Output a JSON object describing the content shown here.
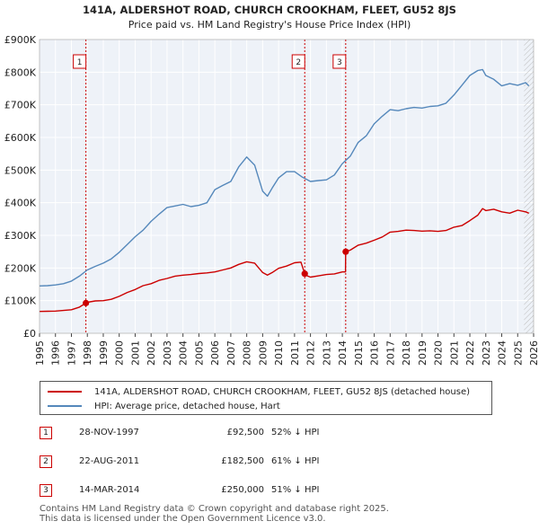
{
  "chart_data": {
    "type": "line",
    "title": "141A, ALDERSHOT ROAD, CHURCH CROOKHAM, FLEET, GU52 8JS",
    "subtitle": "Price paid vs. HM Land Registry's House Price Index (HPI)",
    "xlabel": "",
    "ylabel": "",
    "xlim": [
      1995,
      2026
    ],
    "ylim": [
      0,
      900000
    ],
    "y_ticks": [
      {
        "value": 0,
        "label": "£0"
      },
      {
        "value": 100000,
        "label": "£100K"
      },
      {
        "value": 200000,
        "label": "£200K"
      },
      {
        "value": 300000,
        "label": "£300K"
      },
      {
        "value": 400000,
        "label": "£400K"
      },
      {
        "value": 500000,
        "label": "£500K"
      },
      {
        "value": 600000,
        "label": "£600K"
      },
      {
        "value": 700000,
        "label": "£700K"
      },
      {
        "value": 800000,
        "label": "£800K"
      },
      {
        "value": 900000,
        "label": "£900K"
      }
    ],
    "x_ticks": [
      "1995",
      "1996",
      "1997",
      "1998",
      "1999",
      "2000",
      "2001",
      "2002",
      "2003",
      "2004",
      "2005",
      "2006",
      "2007",
      "2008",
      "2009",
      "2010",
      "2011",
      "2012",
      "2013",
      "2014",
      "2015",
      "2016",
      "2017",
      "2018",
      "2019",
      "2020",
      "2021",
      "2022",
      "2023",
      "2024",
      "2025",
      "2026"
    ],
    "grid": true,
    "series": [
      {
        "name": "141A, ALDERSHOT ROAD, CHURCH CROOKHAM, FLEET, GU52 8JS (detached house)",
        "color": "#cc0000",
        "x": [
          1995.0,
          1995.5,
          1996.0,
          1996.5,
          1997.0,
          1997.5,
          1997.91,
          1998.0,
          1998.5,
          1999.0,
          1999.5,
          2000.0,
          2000.5,
          2001.0,
          2001.5,
          2002.0,
          2002.5,
          2003.0,
          2003.5,
          2004.0,
          2004.5,
          2005.0,
          2005.5,
          2006.0,
          2006.5,
          2007.0,
          2007.5,
          2008.0,
          2008.5,
          2009.0,
          2009.3,
          2009.6,
          2010.0,
          2010.5,
          2011.0,
          2011.4,
          2011.64,
          2011.8,
          2012.0,
          2012.5,
          2013.0,
          2013.5,
          2014.0,
          2014.2,
          2014.21,
          2014.5,
          2015.0,
          2015.5,
          2016.0,
          2016.5,
          2017.0,
          2017.5,
          2018.0,
          2018.5,
          2019.0,
          2019.5,
          2020.0,
          2020.5,
          2021.0,
          2021.5,
          2022.0,
          2022.5,
          2022.8,
          2023.0,
          2023.5,
          2024.0,
          2024.5,
          2025.0,
          2025.5,
          2025.7
        ],
        "values": [
          67000,
          67500,
          68000,
          70000,
          72000,
          80000,
          92500,
          95000,
          99000,
          100000,
          104000,
          113000,
          125000,
          134000,
          146000,
          152000,
          162000,
          168000,
          175000,
          178000,
          180000,
          183000,
          185000,
          188000,
          194000,
          200000,
          211000,
          219000,
          215000,
          186000,
          178000,
          186000,
          199000,
          206000,
          216000,
          218000,
          182500,
          176000,
          172000,
          176000,
          180000,
          182000,
          188000,
          188000,
          250000,
          255000,
          270000,
          276000,
          285000,
          295000,
          310000,
          312000,
          316000,
          315000,
          313000,
          314000,
          312000,
          315000,
          325000,
          330000,
          345000,
          362000,
          382000,
          376000,
          380000,
          372000,
          368000,
          377000,
          372000,
          368000
        ]
      },
      {
        "name": "HPI: Average price, detached house, Hart",
        "color": "#5588bb",
        "x": [
          1995.0,
          1995.5,
          1996.0,
          1996.5,
          1997.0,
          1997.5,
          1998.0,
          1998.5,
          1999.0,
          1999.5,
          2000.0,
          2000.5,
          2001.0,
          2001.5,
          2002.0,
          2002.5,
          2003.0,
          2003.5,
          2004.0,
          2004.5,
          2005.0,
          2005.5,
          2006.0,
          2006.5,
          2007.0,
          2007.5,
          2008.0,
          2008.5,
          2009.0,
          2009.3,
          2009.6,
          2010.0,
          2010.5,
          2011.0,
          2011.5,
          2012.0,
          2012.5,
          2013.0,
          2013.5,
          2014.0,
          2014.5,
          2015.0,
          2015.5,
          2016.0,
          2016.5,
          2017.0,
          2017.5,
          2018.0,
          2018.5,
          2019.0,
          2019.5,
          2020.0,
          2020.5,
          2021.0,
          2021.5,
          2022.0,
          2022.5,
          2022.8,
          2023.0,
          2023.5,
          2024.0,
          2024.5,
          2025.0,
          2025.5,
          2025.7
        ],
        "values": [
          145000,
          146000,
          148000,
          152000,
          160000,
          175000,
          194000,
          205000,
          215000,
          228000,
          248000,
          272000,
          296000,
          316000,
          343000,
          365000,
          385000,
          390000,
          395000,
          388000,
          392000,
          400000,
          440000,
          453000,
          465000,
          510000,
          540000,
          515000,
          435000,
          420000,
          445000,
          476000,
          495000,
          495000,
          478000,
          465000,
          468000,
          470000,
          485000,
          520000,
          543000,
          585000,
          605000,
          642000,
          665000,
          685000,
          682000,
          688000,
          692000,
          690000,
          695000,
          697000,
          705000,
          730000,
          760000,
          790000,
          805000,
          808000,
          790000,
          778000,
          758000,
          765000,
          760000,
          768000,
          758000
        ]
      }
    ],
    "markers": [
      {
        "label": "1",
        "x": 1997.91,
        "y": 92500
      },
      {
        "label": "2",
        "x": 2011.64,
        "y": 182500
      },
      {
        "label": "3",
        "x": 2014.21,
        "y": 250000
      }
    ],
    "hatch_from": 2025.4
  },
  "legend": {
    "property_label": "141A, ALDERSHOT ROAD, CHURCH CROOKHAM, FLEET, GU52 8JS (detached house)",
    "hpi_label": "HPI: Average price, detached house, Hart"
  },
  "sales": [
    {
      "num": "1",
      "date": "28-NOV-1997",
      "price": "£92,500",
      "hpi": "52% ↓ HPI"
    },
    {
      "num": "2",
      "date": "22-AUG-2011",
      "price": "£182,500",
      "hpi": "61% ↓ HPI"
    },
    {
      "num": "3",
      "date": "14-MAR-2014",
      "price": "£250,000",
      "hpi": "51% ↓ HPI"
    }
  ],
  "footer": {
    "line1": "Contains HM Land Registry data © Crown copyright and database right 2025.",
    "line2": "This data is licensed under the Open Government Licence v3.0."
  },
  "colors": {
    "property": "#cc0000",
    "hpi": "#5588bb",
    "plot_bg": "#eef2f8",
    "marker_border": "#cc0000"
  }
}
